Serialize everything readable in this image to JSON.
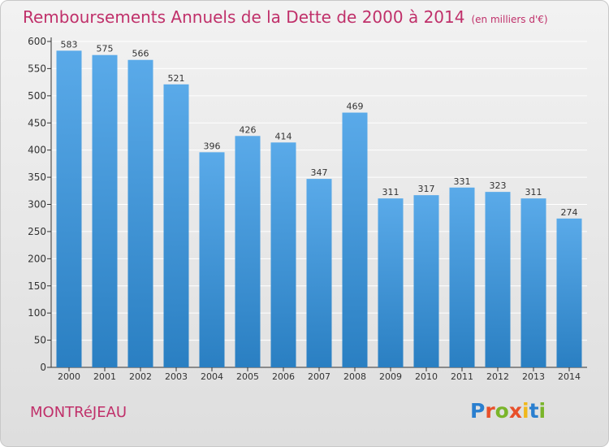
{
  "header": {
    "title": "Remboursements Annuels de la Dette de 2000 à 2014",
    "unit": "(en milliers d'€)"
  },
  "footer": {
    "city": "MONTRéJEAU",
    "logo": "Proxiti"
  },
  "colors": {
    "bar_top": "#5aaae9",
    "bar_bottom": "#2a7fc2",
    "title": "#c0306a",
    "grid": "#ffffff"
  },
  "chart_data": {
    "type": "bar",
    "title": "Remboursements Annuels de la Dette de 2000 à 2014",
    "subtitle": "(en milliers d'€)",
    "xlabel": "",
    "ylabel": "",
    "categories": [
      "2000",
      "2001",
      "2002",
      "2003",
      "2004",
      "2005",
      "2006",
      "2007",
      "2008",
      "2009",
      "2010",
      "2011",
      "2012",
      "2013",
      "2014"
    ],
    "values": [
      583,
      575,
      566,
      521,
      396,
      426,
      414,
      347,
      469,
      311,
      317,
      331,
      323,
      311,
      274
    ],
    "ylim": [
      0,
      600
    ],
    "yticks": [
      0,
      50,
      100,
      150,
      200,
      250,
      300,
      350,
      400,
      450,
      500,
      550,
      600
    ],
    "grid": true,
    "data_labels": true
  }
}
